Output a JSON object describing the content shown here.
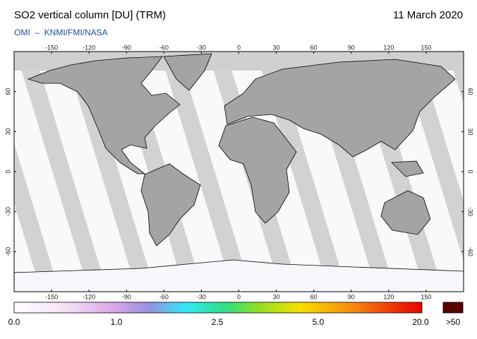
{
  "header": {
    "title": "SO2 vertical column [DU] (TRM)",
    "date": "11 March 2020",
    "credit": "OMI  –  KNMI/FMI/NASA"
  },
  "map": {
    "xlim": [
      -180,
      180
    ],
    "ylim": [
      -90,
      90
    ],
    "xticks": [
      -150,
      -120,
      -90,
      -60,
      -30,
      0,
      30,
      60,
      90,
      120,
      150
    ],
    "yticks": [
      60,
      30,
      0,
      -30,
      -60
    ]
  },
  "colorbar": {
    "labels": [
      "0.0",
      "1.0",
      "2.5",
      "5.0",
      "20.0"
    ],
    "over_label": ">50"
  }
}
